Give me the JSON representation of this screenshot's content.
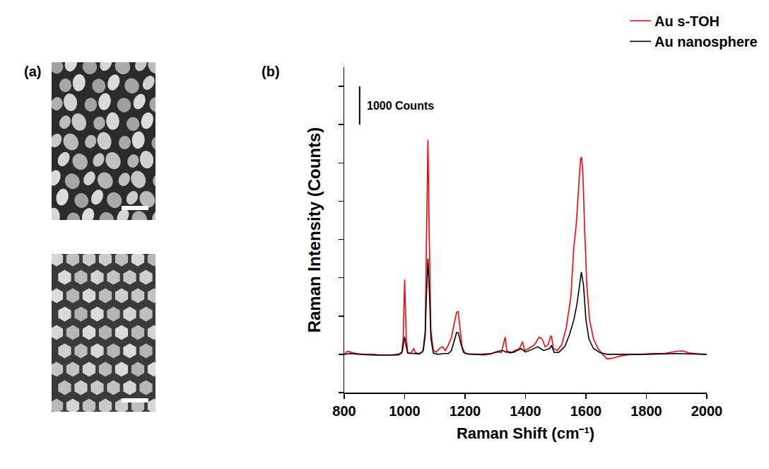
{
  "panel_labels": {
    "a": "(a)",
    "b": "(b)"
  },
  "chart_data": {
    "type": "line",
    "x_label": "Raman Shift (cm⁻¹)",
    "y_label": "Raman Intensity (Counts)",
    "xlim": [
      800,
      2000
    ],
    "xticks": [
      800,
      1000,
      1200,
      1400,
      1600,
      1800,
      2000
    ],
    "ylim": [
      -1000,
      7500
    ],
    "yticks": [
      -1000,
      0,
      1000,
      2000,
      3000,
      4000,
      5000,
      6000,
      7000
    ],
    "tick_labels": "x",
    "grid": false,
    "legend": "top right",
    "scale_bar": {
      "label": "1000 Counts",
      "x": 851,
      "ylim": [
        6000,
        7000
      ]
    },
    "series": [
      {
        "name": "Au s-TOH",
        "color": "#ff0000",
        "x": [
          800,
          810,
          820,
          840,
          860,
          880,
          900,
          920,
          940,
          960,
          980,
          990,
          995,
          1000,
          1005,
          1010,
          1020,
          1030,
          1035,
          1045,
          1060,
          1068,
          1072,
          1077,
          1082,
          1087,
          1095,
          1105,
          1115,
          1125,
          1135,
          1145,
          1155,
          1165,
          1172,
          1177,
          1182,
          1190,
          1200,
          1220,
          1240,
          1260,
          1280,
          1300,
          1320,
          1328,
          1333,
          1338,
          1350,
          1365,
          1380,
          1390,
          1397,
          1410,
          1430,
          1445,
          1455,
          1465,
          1475,
          1482,
          1486,
          1492,
          1505,
          1520,
          1535,
          1550,
          1560,
          1568,
          1575,
          1582,
          1586,
          1590,
          1596,
          1603,
          1612,
          1625,
          1640,
          1655,
          1670,
          1690,
          1710,
          1740,
          1780,
          1820,
          1860,
          1900,
          1920,
          1940,
          1970,
          2000
        ],
        "values": [
          0,
          80,
          60,
          20,
          0,
          0,
          0,
          -20,
          -20,
          -30,
          -20,
          30,
          400,
          1950,
          500,
          50,
          20,
          150,
          50,
          20,
          60,
          600,
          2500,
          5600,
          2800,
          600,
          100,
          60,
          150,
          200,
          100,
          250,
          450,
          800,
          1100,
          1120,
          800,
          200,
          20,
          0,
          0,
          -20,
          0,
          60,
          50,
          300,
          450,
          100,
          30,
          100,
          150,
          330,
          100,
          150,
          250,
          450,
          400,
          200,
          250,
          450,
          480,
          150,
          100,
          250,
          700,
          1500,
          2800,
          3400,
          4300,
          5100,
          5150,
          4700,
          3200,
          1800,
          900,
          400,
          150,
          0,
          -120,
          -100,
          -50,
          -10,
          0,
          20,
          20,
          80,
          90,
          40,
          10,
          0
        ]
      },
      {
        "name": "Au nanosphere",
        "color": "#000000",
        "x": [
          800,
          820,
          850,
          900,
          950,
          980,
          992,
          996,
          1000,
          1004,
          1010,
          1030,
          1050,
          1062,
          1068,
          1072,
          1077,
          1082,
          1087,
          1095,
          1110,
          1130,
          1145,
          1155,
          1165,
          1172,
          1178,
          1185,
          1195,
          1210,
          1250,
          1290,
          1310,
          1325,
          1335,
          1360,
          1385,
          1400,
          1420,
          1440,
          1460,
          1480,
          1486,
          1495,
          1510,
          1530,
          1545,
          1560,
          1570,
          1578,
          1585,
          1592,
          1600,
          1610,
          1625,
          1645,
          1670,
          1700,
          1800,
          1900,
          2000
        ],
        "values": [
          0,
          20,
          0,
          -20,
          -20,
          0,
          60,
          250,
          460,
          250,
          30,
          20,
          10,
          100,
          500,
          1500,
          2500,
          1600,
          400,
          30,
          0,
          20,
          20,
          100,
          350,
          570,
          560,
          300,
          50,
          10,
          0,
          20,
          80,
          100,
          60,
          50,
          150,
          60,
          120,
          200,
          100,
          150,
          230,
          50,
          50,
          200,
          500,
          900,
          1300,
          1800,
          2150,
          1800,
          900,
          400,
          150,
          50,
          0,
          0,
          0,
          20,
          0
        ]
      }
    ]
  }
}
